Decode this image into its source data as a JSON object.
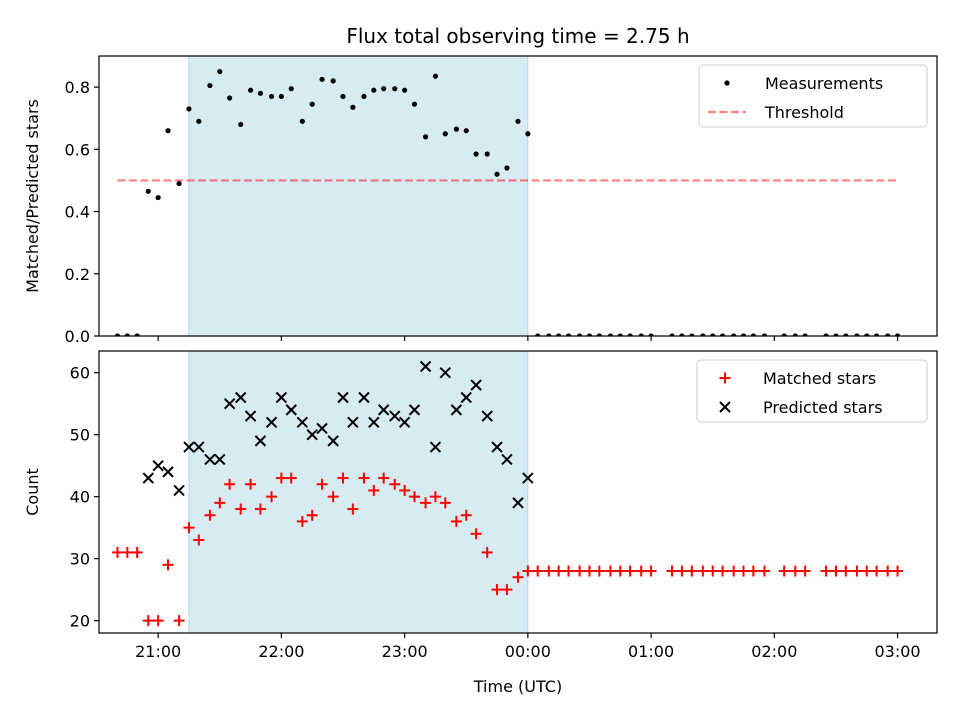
{
  "title": "Flux total observing time = 2.75 h",
  "colors": {
    "shade": "#add8e6",
    "threshold": "#ff0000",
    "measurement": "#000000",
    "matched": "#ff0000",
    "predicted": "#000000"
  },
  "chart_data": [
    {
      "type": "scatter",
      "ylabel": "Matched/Predicted stars",
      "xlabel": "",
      "x_unit": "hours since 20:00 UTC (shared time axis)",
      "xlim": [
        0.52,
        7.32
      ],
      "ylim": [
        0,
        0.9
      ],
      "yticks": [
        0.0,
        0.2,
        0.4,
        0.6,
        0.8
      ],
      "ytick_labels": [
        "0.0",
        "0.2",
        "0.4",
        "0.6",
        "0.8"
      ],
      "grid": false,
      "legend": "upper right",
      "shaded_region": {
        "x0": 1.25,
        "x1": 4.0
      },
      "threshold": {
        "name": "Threshold",
        "value": 0.5,
        "x0": 0.67,
        "x1": 7.0
      },
      "series": [
        {
          "name": "Measurements",
          "x": [
            0.67,
            0.75,
            0.83,
            0.92,
            1.0,
            1.08,
            1.17,
            1.25,
            1.33,
            1.42,
            1.5,
            1.58,
            1.67,
            1.75,
            1.83,
            1.92,
            2.0,
            2.08,
            2.17,
            2.25,
            2.33,
            2.42,
            2.5,
            2.58,
            2.67,
            2.75,
            2.83,
            2.92,
            3.0,
            3.08,
            3.17,
            3.25,
            3.33,
            3.42,
            3.5,
            3.58,
            3.67,
            3.75,
            3.83,
            3.92,
            4.0,
            4.08,
            4.17,
            4.25,
            4.33,
            4.42,
            4.5,
            4.58,
            4.67,
            4.75,
            4.83,
            4.92,
            5.0,
            5.17,
            5.25,
            5.33,
            5.42,
            5.5,
            5.58,
            5.67,
            5.75,
            5.83,
            5.92,
            6.08,
            6.17,
            6.25,
            6.42,
            6.5,
            6.58,
            6.67,
            6.75,
            6.83,
            6.92,
            7.0
          ],
          "y": [
            0.0,
            0.0,
            0.0,
            0.465,
            0.445,
            0.66,
            0.49,
            0.73,
            0.69,
            0.805,
            0.85,
            0.765,
            0.68,
            0.79,
            0.78,
            0.77,
            0.77,
            0.795,
            0.69,
            0.745,
            0.825,
            0.82,
            0.77,
            0.735,
            0.77,
            0.79,
            0.795,
            0.795,
            0.79,
            0.745,
            0.64,
            0.835,
            0.65,
            0.665,
            0.66,
            0.585,
            0.585,
            0.52,
            0.54,
            0.69,
            0.65,
            0.0,
            0.0,
            0.0,
            0.0,
            0.0,
            0.0,
            0.0,
            0.0,
            0.0,
            0.0,
            0.0,
            0.0,
            0.0,
            0.0,
            0.0,
            0.0,
            0.0,
            0.0,
            0.0,
            0.0,
            0.0,
            0.0,
            0.0,
            0.0,
            0.0,
            0.0,
            0.0,
            0.0,
            0.0,
            0.0,
            0.0,
            0.0,
            0.0
          ]
        }
      ]
    },
    {
      "type": "scatter",
      "ylabel": "Count",
      "xlabel": "Time (UTC)",
      "x_unit": "hours since 20:00 UTC (shared time axis)",
      "xlim": [
        0.52,
        7.32
      ],
      "ylim": [
        18,
        63.5
      ],
      "yticks": [
        20,
        30,
        40,
        50,
        60
      ],
      "ytick_labels": [
        "20",
        "30",
        "40",
        "50",
        "60"
      ],
      "xticks": [
        1,
        2,
        3,
        4,
        5,
        6,
        7
      ],
      "xtick_labels": [
        "21:00",
        "22:00",
        "23:00",
        "00:00",
        "01:00",
        "02:00",
        "03:00"
      ],
      "grid": false,
      "legend": "upper right",
      "shaded_region": {
        "x0": 1.25,
        "x1": 4.0
      },
      "series": [
        {
          "name": "Matched stars",
          "marker": "plus",
          "x": [
            0.67,
            0.75,
            0.83,
            0.92,
            1.0,
            1.08,
            1.17,
            1.25,
            1.33,
            1.42,
            1.5,
            1.58,
            1.67,
            1.75,
            1.83,
            1.92,
            2.0,
            2.08,
            2.17,
            2.25,
            2.33,
            2.42,
            2.5,
            2.58,
            2.67,
            2.75,
            2.83,
            2.92,
            3.0,
            3.08,
            3.17,
            3.25,
            3.33,
            3.42,
            3.5,
            3.58,
            3.67,
            3.75,
            3.83,
            3.92,
            4.0,
            4.08,
            4.17,
            4.25,
            4.33,
            4.42,
            4.5,
            4.58,
            4.67,
            4.75,
            4.83,
            4.92,
            5.0,
            5.17,
            5.25,
            5.33,
            5.42,
            5.5,
            5.58,
            5.67,
            5.75,
            5.83,
            5.92,
            6.08,
            6.17,
            6.25,
            6.42,
            6.5,
            6.58,
            6.67,
            6.75,
            6.83,
            6.92,
            7.0
          ],
          "y": [
            31,
            31,
            31,
            20,
            20,
            29,
            20,
            35,
            33,
            37,
            39,
            42,
            38,
            42,
            38,
            40,
            43,
            43,
            36,
            37,
            42,
            40,
            43,
            38,
            43,
            41,
            43,
            42,
            41,
            40,
            39,
            40,
            39,
            36,
            37,
            34,
            31,
            25,
            25,
            27,
            28,
            28,
            28,
            28,
            28,
            28,
            28,
            28,
            28,
            28,
            28,
            28,
            28,
            28,
            28,
            28,
            28,
            28,
            28,
            28,
            28,
            28,
            28,
            28,
            28,
            28,
            28,
            28,
            28,
            28,
            28,
            28,
            28,
            28
          ]
        },
        {
          "name": "Predicted stars",
          "marker": "x",
          "x": [
            0.92,
            1.0,
            1.08,
            1.17,
            1.25,
            1.33,
            1.42,
            1.5,
            1.58,
            1.67,
            1.75,
            1.83,
            1.92,
            2.0,
            2.08,
            2.17,
            2.25,
            2.33,
            2.42,
            2.5,
            2.58,
            2.67,
            2.75,
            2.83,
            2.92,
            3.0,
            3.08,
            3.17,
            3.25,
            3.33,
            3.42,
            3.5,
            3.58,
            3.67,
            3.75,
            3.83,
            3.92,
            4.0
          ],
          "y": [
            43,
            45,
            44,
            41,
            48,
            48,
            46,
            46,
            55,
            56,
            53,
            49,
            52,
            56,
            54,
            52,
            50,
            51,
            49,
            56,
            52,
            56,
            52,
            54,
            53,
            52,
            54,
            61,
            48,
            60,
            54,
            56,
            58,
            53,
            48,
            46,
            39,
            43
          ]
        }
      ]
    }
  ]
}
